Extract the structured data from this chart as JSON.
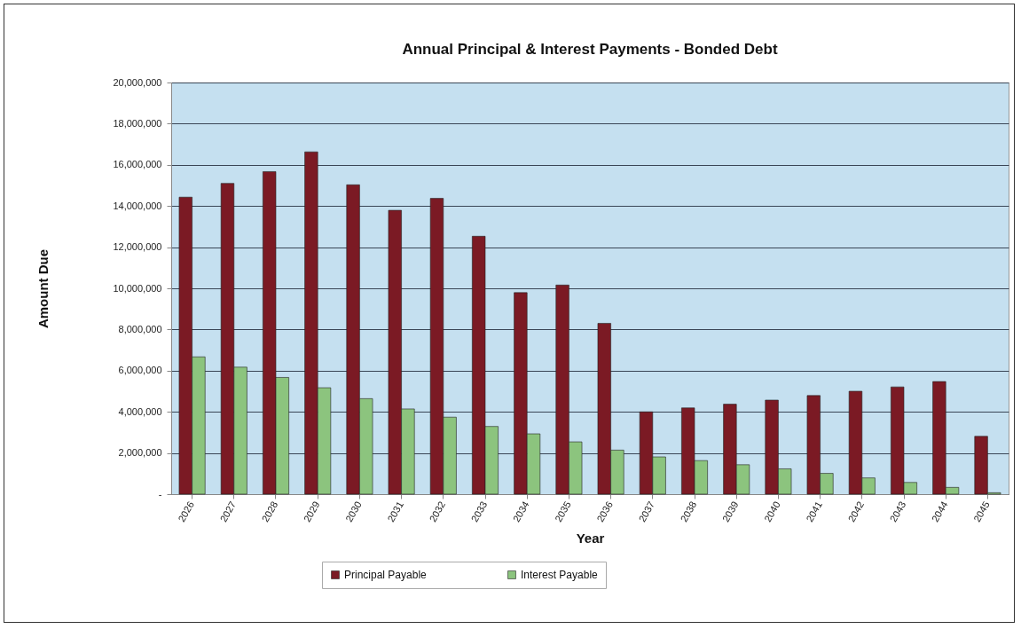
{
  "chart_data": {
    "type": "bar",
    "title": "Annual Principal & Interest Payments - Bonded Debt",
    "xlabel": "Year",
    "ylabel": "Amount Due",
    "categories": [
      "2026",
      "2027",
      "2028",
      "2029",
      "2030",
      "2031",
      "2032",
      "2033",
      "2034",
      "2035",
      "2036",
      "2037",
      "2038",
      "2039",
      "2040",
      "2041",
      "2042",
      "2043",
      "2044",
      "2045"
    ],
    "series": [
      {
        "name": "Principal Payable",
        "color": "#7b1a24",
        "values": [
          14430000,
          15100000,
          15670000,
          16630000,
          15030000,
          13790000,
          14370000,
          12530000,
          9790000,
          10160000,
          8300000,
          4000000,
          4190000,
          4370000,
          4570000,
          4790000,
          5000000,
          5210000,
          5470000,
          2810000
        ]
      },
      {
        "name": "Interest Payable",
        "color": "#8cc47e",
        "values": [
          6670000,
          6170000,
          5670000,
          5170000,
          4640000,
          4140000,
          3740000,
          3290000,
          2930000,
          2540000,
          2140000,
          1810000,
          1630000,
          1430000,
          1230000,
          1010000,
          790000,
          570000,
          330000,
          70000
        ]
      }
    ],
    "ylim": [
      0,
      20000000
    ],
    "yticks": [
      {
        "value": 0,
        "label": "-"
      },
      {
        "value": 2000000,
        "label": "2,000,000"
      },
      {
        "value": 4000000,
        "label": "4,000,000"
      },
      {
        "value": 6000000,
        "label": "6,000,000"
      },
      {
        "value": 8000000,
        "label": "8,000,000"
      },
      {
        "value": 10000000,
        "label": "10,000,000"
      },
      {
        "value": 12000000,
        "label": "12,000,000"
      },
      {
        "value": 14000000,
        "label": "14,000,000"
      },
      {
        "value": 16000000,
        "label": "16,000,000"
      },
      {
        "value": 18000000,
        "label": "18,000,000"
      },
      {
        "value": 20000000,
        "label": "20,000,000"
      }
    ],
    "grid": "y",
    "legend": "bottom"
  }
}
